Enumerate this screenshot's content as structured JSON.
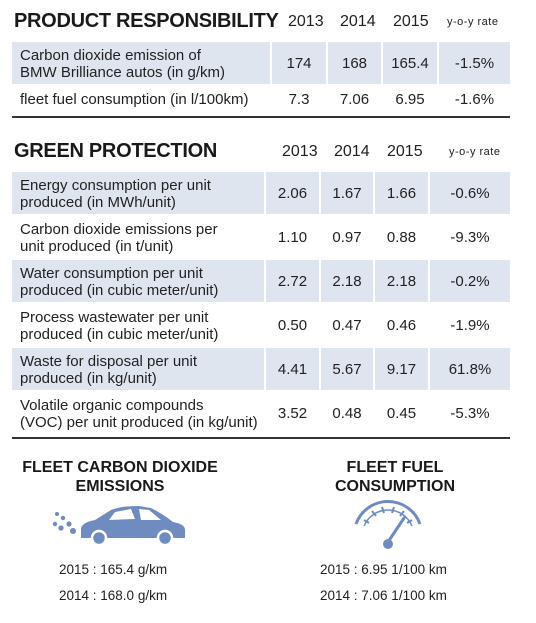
{
  "product": {
    "title": "PRODUCT RESPONSIBILITY",
    "years": [
      "2013",
      "2014",
      "2015"
    ],
    "rate_header": "y-o-y rate",
    "rows": [
      {
        "label_l1": "Carbon dioxide emission of",
        "label_l2": "BMW Brilliance autos (in g/km)",
        "v2013": "174",
        "v2014": "168",
        "v2015": "165.4",
        "rate": "-1.5%"
      },
      {
        "label_l1": "fleet fuel consumption (in l/100km)",
        "label_l2": "",
        "v2013": "7.3",
        "v2014": "7.06",
        "v2015": "6.95",
        "rate": "-1.6%"
      }
    ]
  },
  "green": {
    "title": "GREEN PROTECTION",
    "years": [
      "2013",
      "2014",
      "2015"
    ],
    "rate_header": "y-o-y rate",
    "rows": [
      {
        "label_l1": "Energy consumption per unit",
        "label_l2": "produced (in MWh/unit)",
        "v2013": "2.06",
        "v2014": "1.67",
        "v2015": "1.66",
        "rate": "-0.6%"
      },
      {
        "label_l1": "Carbon dioxide emissions per",
        "label_l2": "unit produced (in t/unit)",
        "v2013": "1.10",
        "v2014": "0.97",
        "v2015": "0.88",
        "rate": "-9.3%"
      },
      {
        "label_l1": "Water consumption per unit",
        "label_l2": "produced (in cubic meter/unit)",
        "v2013": "2.72",
        "v2014": "2.18",
        "v2015": "2.18",
        "rate": "-0.2%"
      },
      {
        "label_l1": "Process wastewater per unit",
        "label_l2": "produced (in cubic meter/unit)",
        "v2013": "0.50",
        "v2014": "0.47",
        "v2015": "0.46",
        "rate": "-1.9%"
      },
      {
        "label_l1": "Waste for disposal per unit",
        "label_l2": "produced (in kg/unit)",
        "v2013": "4.41",
        "v2014": "5.67",
        "v2015": "9.17",
        "rate": "61.8%"
      },
      {
        "label_l1": "Volatile organic compounds",
        "label_l2": "(VOC) per unit produced (in kg/unit)",
        "v2013": "3.52",
        "v2014": "0.48",
        "v2015": "0.45",
        "rate": "-5.3%"
      }
    ]
  },
  "fleet_co2": {
    "title_l1": "FLEET CARBON DIOXIDE",
    "title_l2": "EMISSIONS",
    "icon": "car-exhaust-icon",
    "line_2015": "2015 : 165.4 g/km",
    "line_2014": "2014 : 168.0 g/km"
  },
  "fleet_fuel": {
    "title_l1": "FLEET FUEL",
    "title_l2": "CONSUMPTION",
    "icon": "fuel-gauge-icon",
    "line_2015": "2015 : 6.95 1/100 km",
    "line_2014": "2014 : 7.06 1/100 km"
  },
  "colors": {
    "row_shade": "#dfe5ef",
    "icon_blue": "#6e8cc0"
  }
}
